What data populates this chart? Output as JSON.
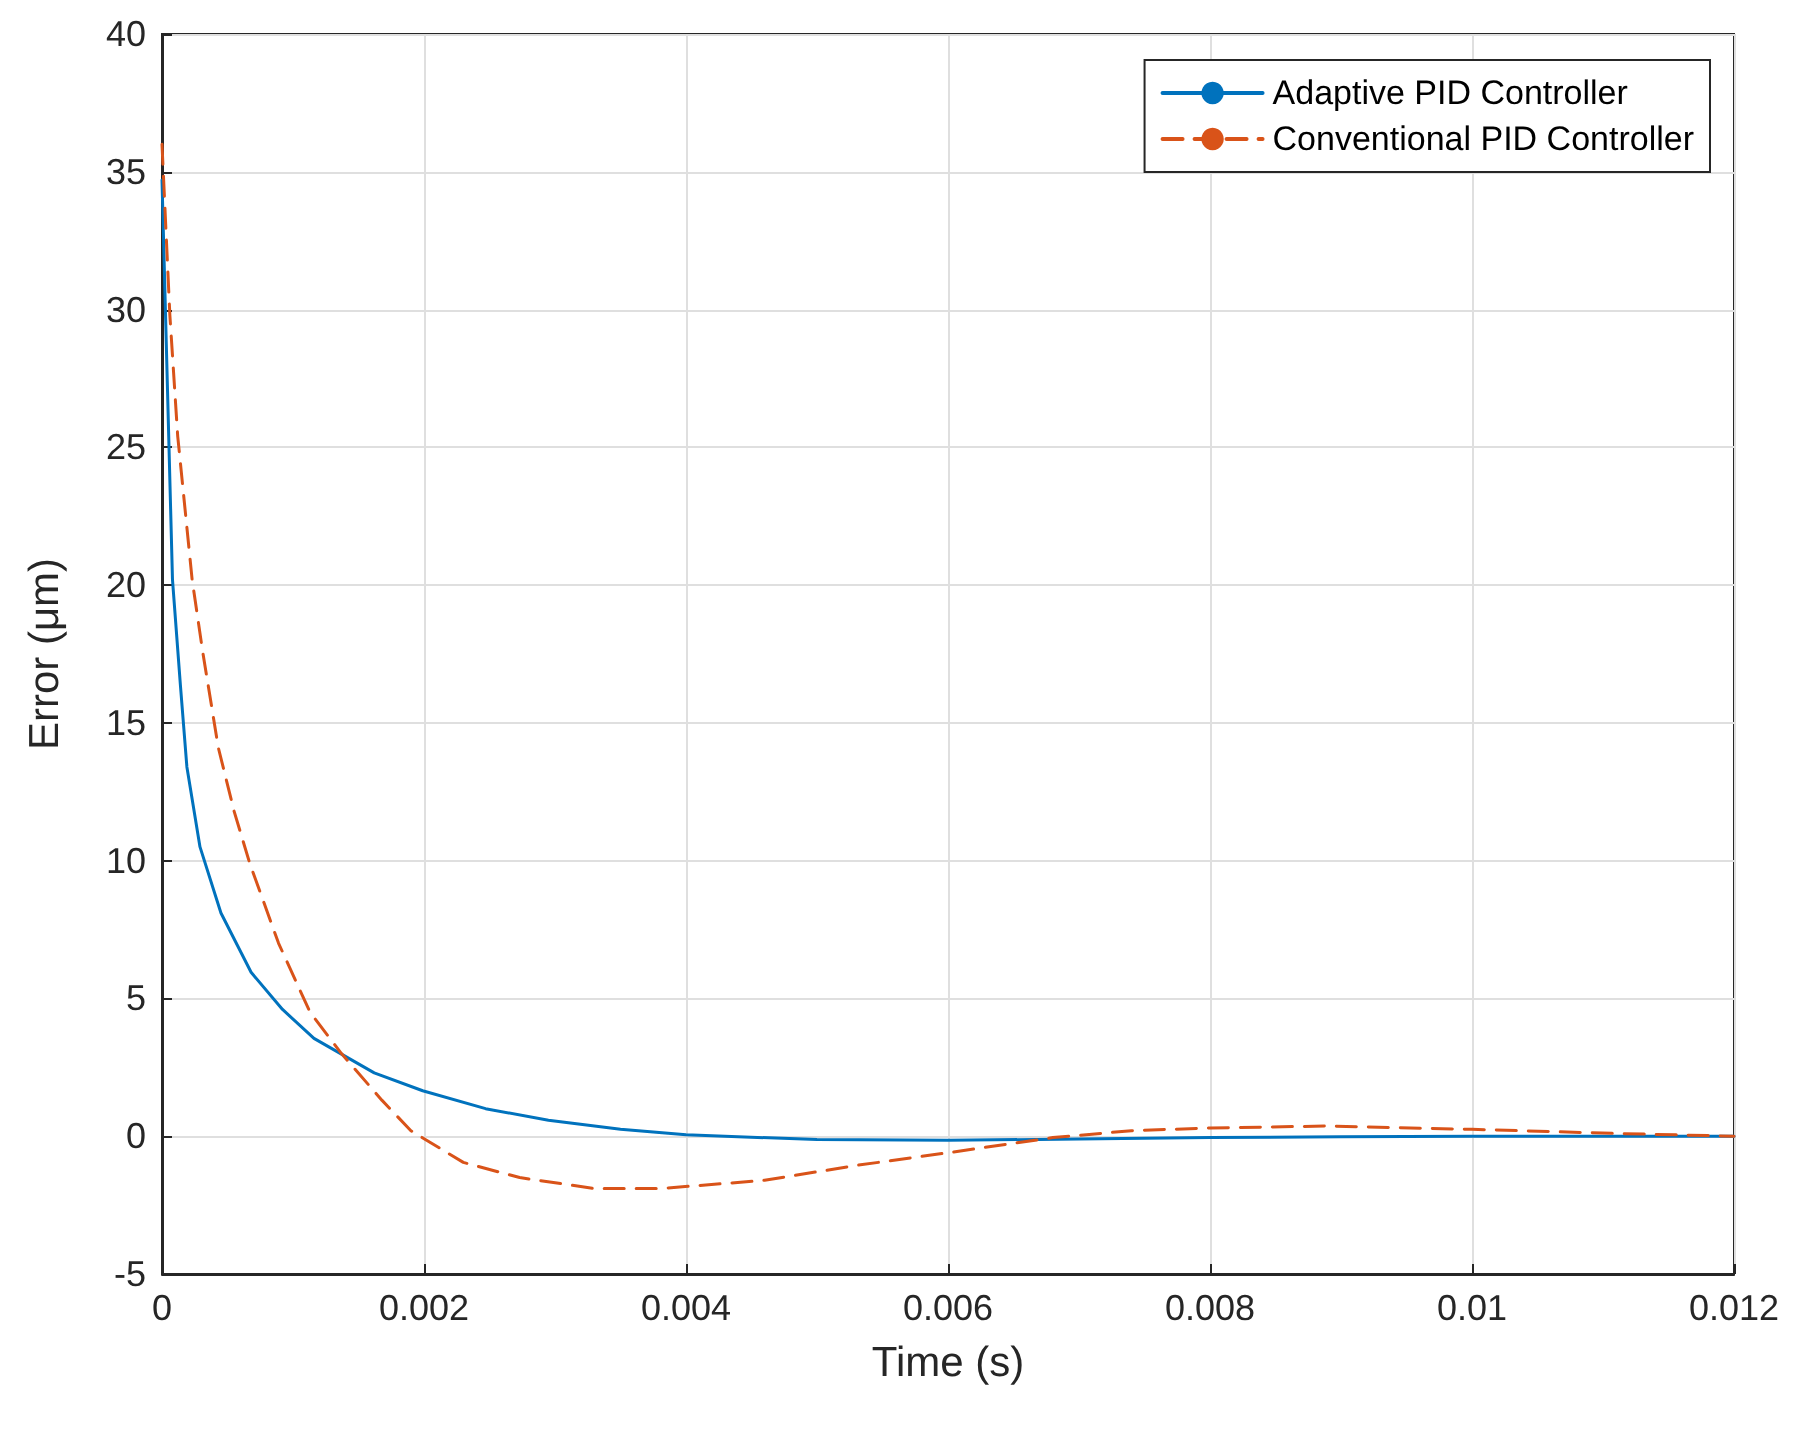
{
  "chart_data": {
    "type": "line",
    "xlabel": "Time (s)",
    "ylabel": "Error (μm)",
    "xlim": [
      0,
      0.012
    ],
    "xticks": [
      0,
      0.002,
      0.004,
      0.006,
      0.008,
      0.01,
      0.012
    ],
    "ylim": [
      -5,
      40
    ],
    "yticks": [
      -5,
      0,
      5,
      10,
      15,
      20,
      25,
      30,
      35,
      40
    ],
    "grid": true,
    "legend": "top right",
    "marker": "none",
    "series": [
      {
        "name": "Adaptive PID Controller",
        "color": "#0072bd",
        "line_style": "solid",
        "x": [
          0,
          8e-05,
          0.00014,
          0.00019,
          0.00029,
          0.00045,
          0.00068,
          0.00092,
          0.00116,
          0.00162,
          0.00199,
          0.00247,
          0.00295,
          0.0035,
          0.004,
          0.005,
          0.006,
          0.007,
          0.008,
          0.009,
          0.01,
          0.011,
          0.012
        ],
        "values": [
          34.7,
          20.2,
          16.4,
          13.4,
          10.5,
          8.1,
          5.95,
          4.6,
          3.55,
          2.3,
          1.65,
          1.0,
          0.58,
          0.25,
          0.05,
          -0.12,
          -0.15,
          -0.1,
          -0.05,
          -0.02,
          0,
          0,
          0
        ]
      },
      {
        "name": "Conventional PID Controller",
        "color": "#d95319",
        "line_style": "dashed",
        "x": [
          0,
          6e-05,
          0.00012,
          0.00023,
          0.00031,
          0.00043,
          0.00055,
          0.00067,
          0.00089,
          0.00113,
          0.00137,
          0.00168,
          0.0019,
          0.0023,
          0.00273,
          0.0033,
          0.0038,
          0.0046,
          0.0053,
          0.006,
          0.0068,
          0.0074,
          0.008,
          0.0089,
          0.01,
          0.0111,
          0.012
        ],
        "values": [
          36,
          29.8,
          25.4,
          20.2,
          17.6,
          14.1,
          11.8,
          9.9,
          7.0,
          4.5,
          3.0,
          1.3,
          0.2,
          -0.95,
          -1.5,
          -1.9,
          -1.9,
          -1.6,
          -1.06,
          -0.6,
          -0.05,
          0.2,
          0.3,
          0.37,
          0.25,
          0.1,
          0
        ]
      }
    ]
  }
}
